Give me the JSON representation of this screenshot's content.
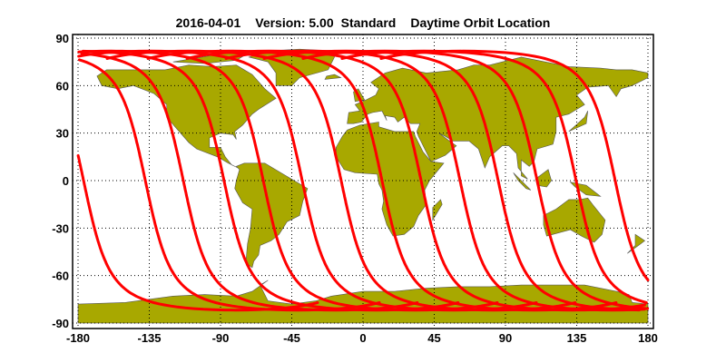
{
  "title": {
    "date": "2016-04-01",
    "version": "Version: 5.00",
    "mode": "Standard",
    "product": "Daytime Orbit Location"
  },
  "chart_data": {
    "type": "map",
    "projection": "equirectangular",
    "xlim": [
      -180,
      180
    ],
    "ylim": [
      -90,
      90
    ],
    "x_ticks": [
      "-180",
      "-135",
      "-90",
      "-45",
      "0",
      "45",
      "90",
      "135",
      "180"
    ],
    "y_ticks": [
      "90",
      "60",
      "30",
      "0",
      "-30",
      "-60",
      "-90"
    ],
    "grid": true,
    "orbit_equator_crossing_longitudes": [
      -176.5,
      -137.5,
      -113.5,
      -87.8,
      -63,
      -38.4,
      -13.8,
      12,
      36.7,
      61.3,
      85.4,
      110,
      134.6,
      159.3
    ],
    "colors": {
      "orbit": "#ff0000",
      "land": "#a8a800",
      "coast": "#555555"
    }
  }
}
